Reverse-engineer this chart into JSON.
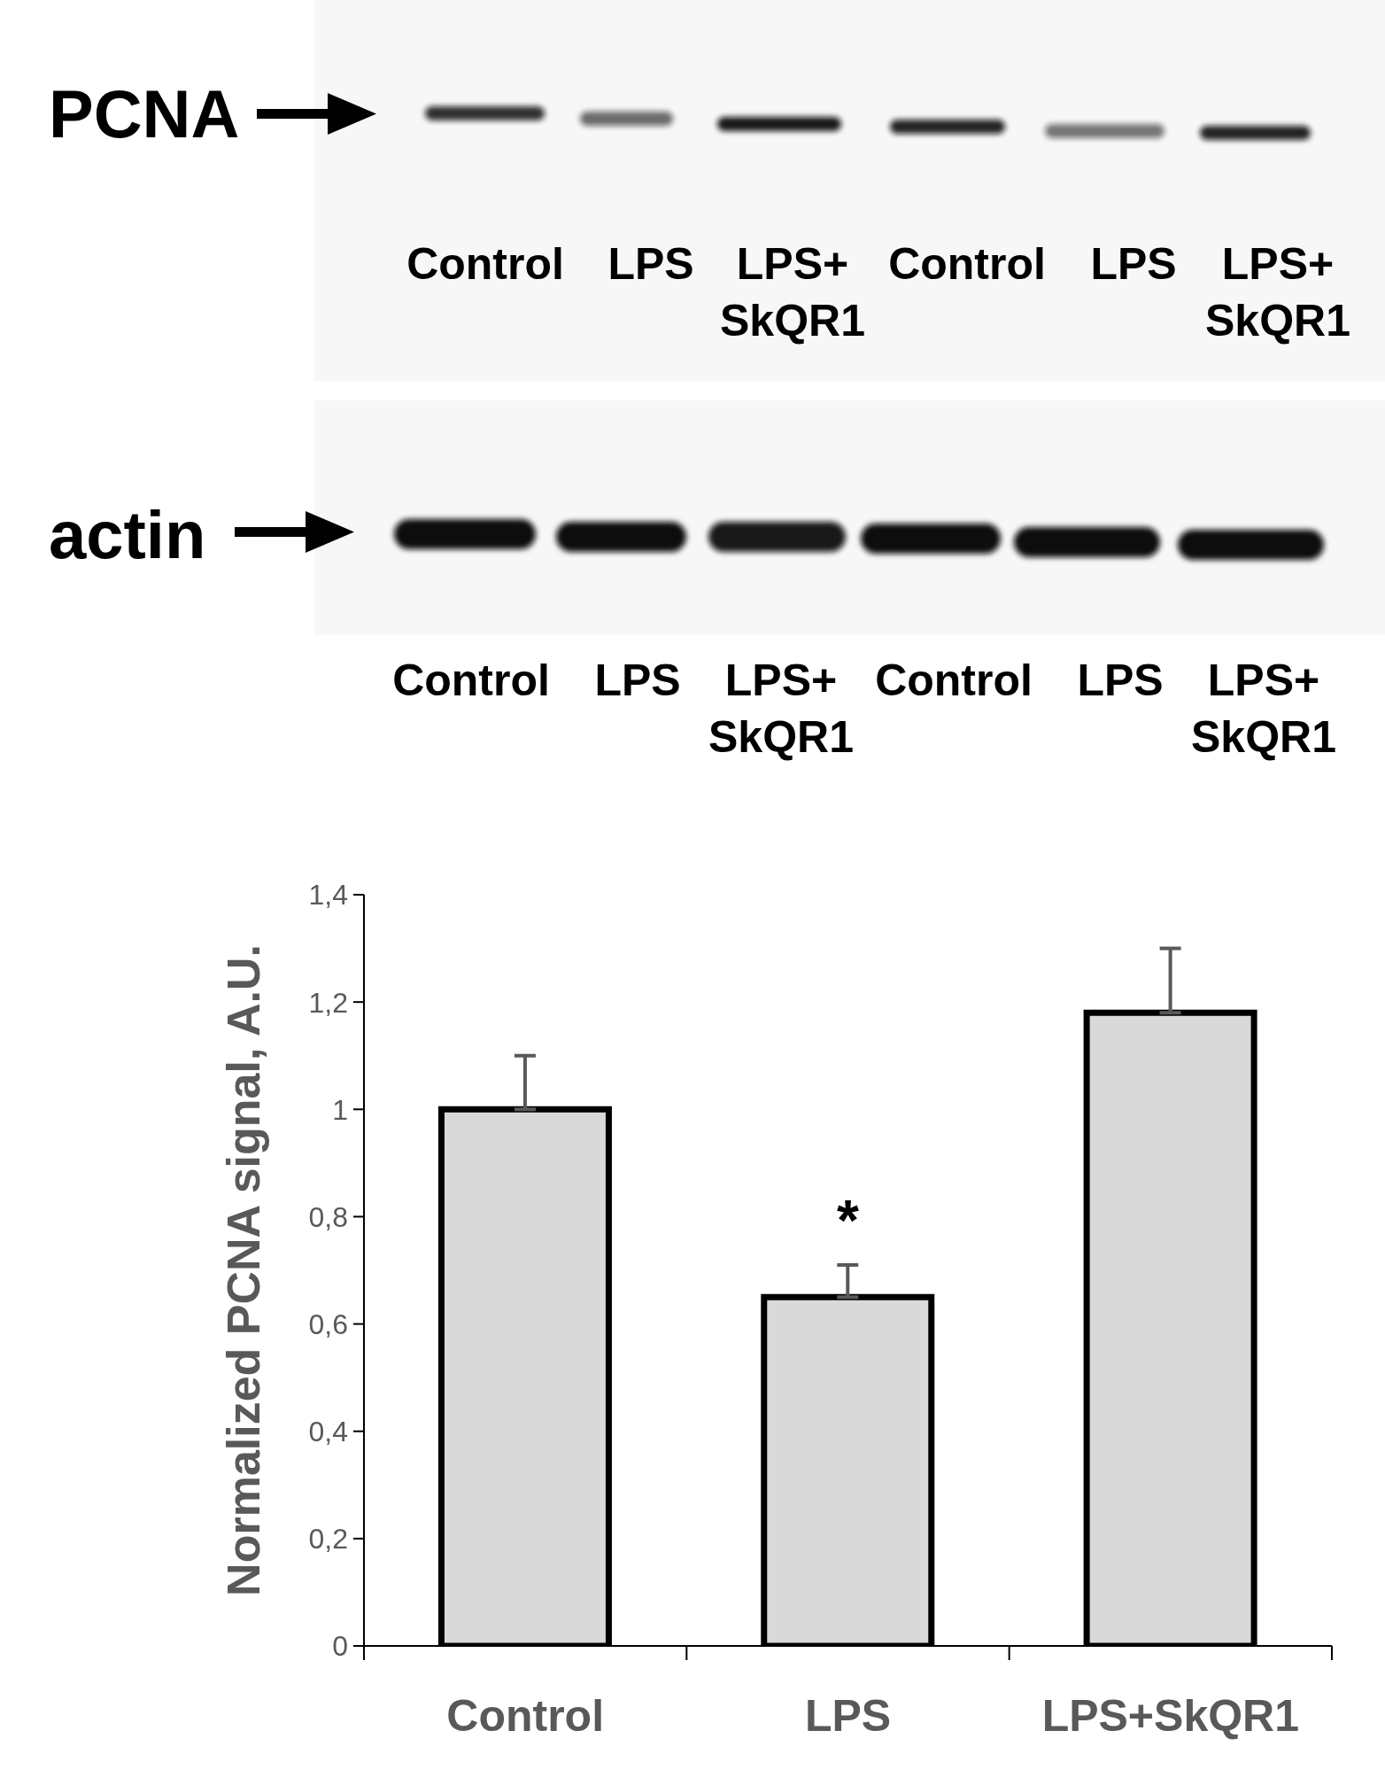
{
  "chart_data": {
    "type": "bar",
    "categories": [
      "Control",
      "LPS",
      "LPS+SkQR1"
    ],
    "values": [
      1.0,
      0.65,
      1.18
    ],
    "errors": [
      [
        1.0,
        1.1
      ],
      [
        0.65,
        0.71
      ],
      [
        1.18,
        1.3
      ]
    ],
    "color": "#d9d9d9",
    "ylabel": "Normalized PCNA signal, A.U.",
    "ylim": [
      0,
      1.4
    ],
    "yticks": [
      0,
      {
        "value": 0.2,
        "label": "0,2"
      },
      {
        "value": 0.4,
        "label": "0,4"
      },
      {
        "value": 0.6,
        "label": "0,6"
      },
      {
        "value": 0.8,
        "label": "0,8"
      },
      1,
      {
        "value": 1.2,
        "label": "1,2"
      },
      {
        "value": 1.4,
        "label": "1,4"
      }
    ],
    "annotations": [
      "PCNA",
      "Control",
      "LPS",
      "LPS+ SkQR1",
      "Control",
      "LPS",
      "LPS+ SkQR1",
      "actin",
      "Control",
      "LPS",
      "LPS+ SkQR1",
      "Control",
      "LPS",
      "LPS+ SkQR1",
      "*"
    ]
  }
}
